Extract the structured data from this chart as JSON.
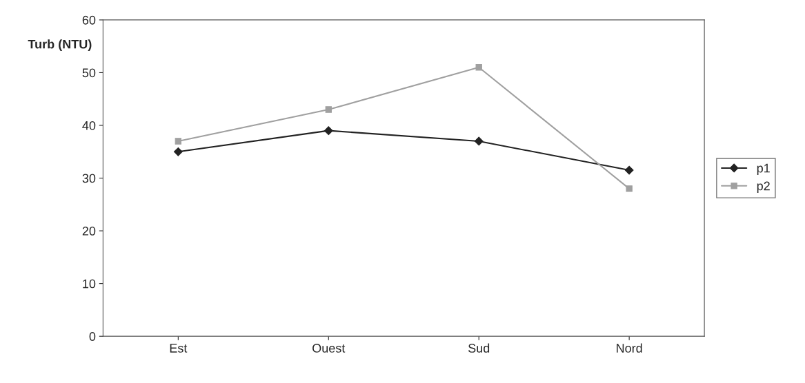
{
  "chart_data": {
    "type": "line",
    "ylabel": "Turb (NTU)",
    "categories": [
      "Est",
      "Ouest",
      "Sud",
      "Nord"
    ],
    "series": [
      {
        "name": "p1",
        "color": "#222222",
        "marker": "diamond",
        "values": [
          35,
          39,
          37,
          31.5
        ]
      },
      {
        "name": "p2",
        "color": "#a0a0a0",
        "marker": "square",
        "values": [
          37,
          43,
          51,
          28
        ]
      }
    ],
    "ylim": [
      0,
      60
    ],
    "yticks": [
      0,
      10,
      20,
      30,
      40,
      50,
      60
    ],
    "grid": false,
    "legend": "right",
    "line_style": "solid"
  }
}
